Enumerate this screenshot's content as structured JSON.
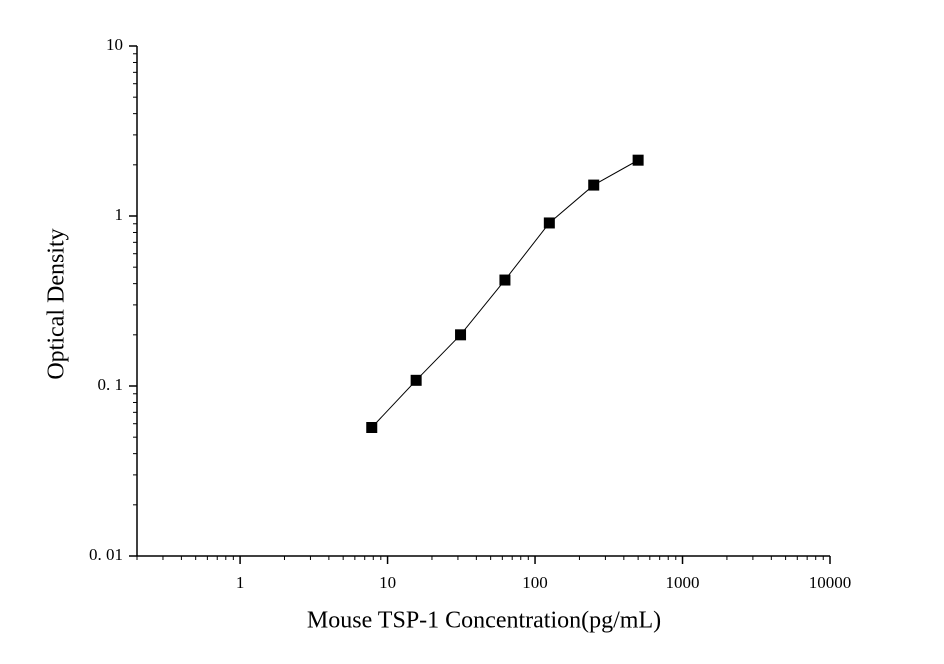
{
  "chart_data": {
    "type": "scatter",
    "x_label": "Mouse TSP-1 Concentration(pg/mL)",
    "y_label": "Optical Density",
    "x": [
      7.8125,
      15.625,
      31.25,
      62.5,
      125,
      250,
      500
    ],
    "series": [
      {
        "color": "#000000",
        "values": [
          0.057,
          0.108,
          0.2,
          0.42,
          0.91,
          1.52,
          2.13
        ]
      }
    ],
    "xlim": [
      0.2,
      10000
    ],
    "ylim": [
      0.01,
      10
    ],
    "xlog": true,
    "ylog": true,
    "xticks": [
      1,
      10,
      100,
      1000,
      10000
    ],
    "yticks": [
      {
        "value": 0.01,
        "label": "0. 01"
      },
      {
        "value": 0.1,
        "label": "0. 1"
      },
      1,
      10
    ]
  }
}
